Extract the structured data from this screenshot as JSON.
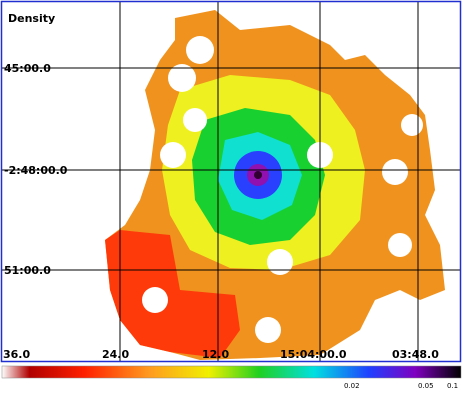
{
  "title": "Density",
  "y_labels": [
    "45:00.0",
    "-2:48:00.0",
    "51:00.0"
  ],
  "x_labels": [
    "36.0",
    "24.0",
    "12.0",
    "15:04:00.0",
    "03:48.0"
  ],
  "colorbar_labels": [
    "0.02",
    "0.05",
    "0.1"
  ]
}
